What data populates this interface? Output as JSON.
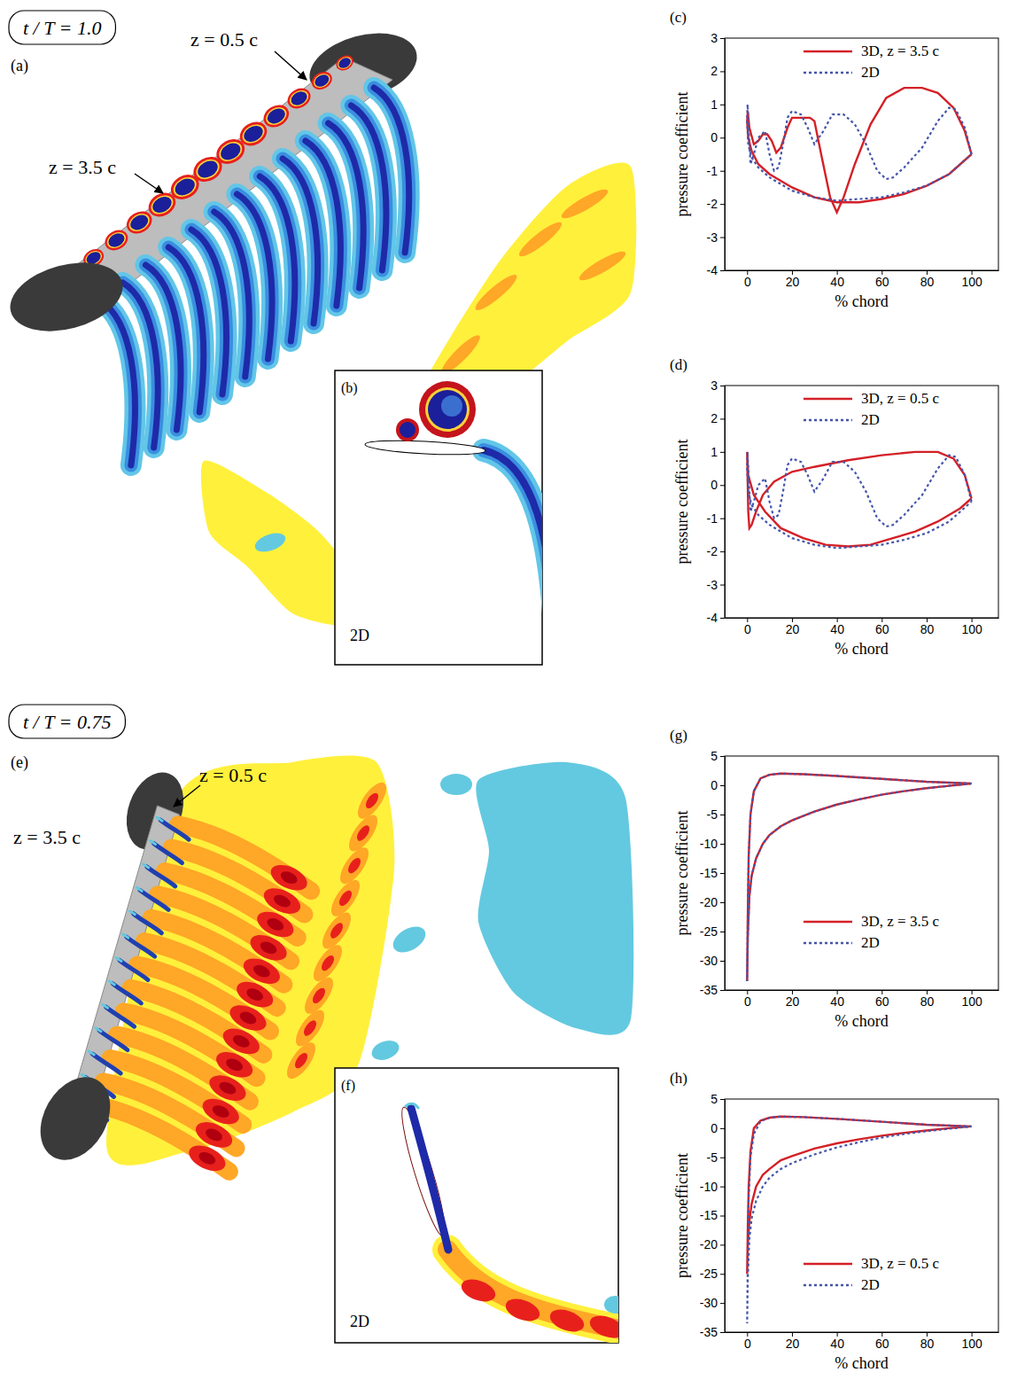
{
  "chart_data": [
    {
      "type": "line",
      "panel": "(c)",
      "x_label": "% chord",
      "y_label": "pressure coefficient",
      "xlim": [
        -10,
        112
      ],
      "xticks": [
        0,
        20,
        40,
        60,
        80,
        100
      ],
      "ylim": [
        -4,
        3
      ],
      "yticks": [
        -4,
        -3,
        -2,
        -1,
        0,
        1,
        2,
        3
      ],
      "legend": "upper right",
      "series": [
        {
          "name": "3D, z = 3.5 c",
          "color": "#d42027",
          "line_style": "solid",
          "x": [
            100,
            97,
            92,
            85,
            78,
            70,
            62,
            55,
            48,
            43,
            40,
            37,
            33,
            30,
            28,
            24,
            20,
            18,
            15,
            13,
            11,
            9,
            7,
            5,
            3,
            1,
            0.3,
            0,
            0.5,
            2,
            5,
            10,
            20,
            30,
            40,
            50,
            60,
            70,
            80,
            90,
            95,
            100
          ],
          "values": [
            -0.5,
            0.2,
            0.9,
            1.35,
            1.5,
            1.5,
            1.2,
            0.4,
            -0.8,
            -1.8,
            -2.25,
            -1.8,
            -0.5,
            0.5,
            0.6,
            0.6,
            0.6,
            0.3,
            -0.3,
            -0.45,
            -0.1,
            0.1,
            0.1,
            -0.1,
            -0.2,
            0.3,
            0.8,
            0.5,
            0.0,
            -0.4,
            -0.8,
            -1.1,
            -1.5,
            -1.8,
            -1.95,
            -1.95,
            -1.85,
            -1.7,
            -1.45,
            -1.1,
            -0.8,
            -0.5
          ]
        },
        {
          "name": "2D",
          "color": "#4455aa",
          "line_style": "dotted",
          "x": [
            100,
            97,
            93,
            90,
            85,
            78,
            70,
            65,
            62,
            58,
            53,
            48,
            43,
            38,
            34,
            30,
            27,
            24,
            20,
            18,
            16,
            14,
            12,
            10,
            8,
            5,
            3,
            1.5,
            0.5,
            0.2,
            0,
            0.5,
            2,
            5,
            10,
            20,
            30,
            40,
            50,
            60,
            70,
            80,
            90,
            95,
            100
          ],
          "values": [
            -0.5,
            0.3,
            0.85,
            0.9,
            0.5,
            -0.3,
            -0.9,
            -1.2,
            -1.25,
            -1.0,
            -0.2,
            0.4,
            0.7,
            0.7,
            0.2,
            -0.2,
            0.3,
            0.7,
            0.8,
            0.6,
            -0.2,
            -0.9,
            -1.0,
            -0.5,
            0.2,
            0.0,
            -0.5,
            -0.8,
            0.5,
            1.0,
            0.5,
            -0.2,
            -0.6,
            -0.9,
            -1.2,
            -1.6,
            -1.8,
            -1.9,
            -1.85,
            -1.8,
            -1.65,
            -1.45,
            -1.1,
            -0.8,
            -0.5
          ]
        }
      ]
    },
    {
      "type": "line",
      "panel": "(d)",
      "x_label": "% chord",
      "y_label": "pressure coefficient",
      "xlim": [
        -10,
        112
      ],
      "xticks": [
        0,
        20,
        40,
        60,
        80,
        100
      ],
      "ylim": [
        -4,
        3
      ],
      "yticks": [
        -4,
        -3,
        -2,
        -1,
        0,
        1,
        2,
        3
      ],
      "legend": "upper right",
      "series": [
        {
          "name": "3D, z = 0.5 c",
          "color": "#d42027",
          "line_style": "solid",
          "x": [
            100,
            97,
            92,
            85,
            75,
            60,
            45,
            30,
            20,
            12,
            7,
            4,
            2,
            1,
            0.5,
            0,
            0.5,
            3,
            8,
            15,
            25,
            35,
            45,
            55,
            65,
            75,
            85,
            95,
            100
          ],
          "values": [
            -0.4,
            0.3,
            0.8,
            1.0,
            1.0,
            0.9,
            0.75,
            0.55,
            0.4,
            0.1,
            -0.3,
            -0.8,
            -1.2,
            -1.3,
            -0.8,
            1.0,
            0.3,
            -0.3,
            -0.8,
            -1.3,
            -1.6,
            -1.8,
            -1.85,
            -1.8,
            -1.6,
            -1.4,
            -1.1,
            -0.7,
            -0.4
          ]
        },
        {
          "name": "2D",
          "color": "#4455aa",
          "line_style": "dotted",
          "x": [
            100,
            97,
            93,
            90,
            85,
            78,
            70,
            65,
            62,
            58,
            53,
            48,
            43,
            38,
            34,
            30,
            27,
            24,
            20,
            18,
            16,
            14,
            12,
            10,
            8,
            5,
            3,
            1.5,
            0.5,
            0.2,
            0,
            0.5,
            2,
            5,
            10,
            20,
            30,
            40,
            50,
            60,
            70,
            80,
            90,
            95,
            100
          ],
          "values": [
            -0.5,
            0.3,
            0.85,
            0.9,
            0.5,
            -0.3,
            -0.9,
            -1.2,
            -1.25,
            -1.0,
            -0.2,
            0.4,
            0.7,
            0.7,
            0.2,
            -0.2,
            0.3,
            0.7,
            0.8,
            0.6,
            -0.2,
            -0.9,
            -1.0,
            -0.5,
            0.2,
            0.0,
            -0.5,
            -0.8,
            0.5,
            1.0,
            0.5,
            -0.2,
            -0.6,
            -0.9,
            -1.2,
            -1.6,
            -1.8,
            -1.9,
            -1.85,
            -1.8,
            -1.65,
            -1.45,
            -1.1,
            -0.8,
            -0.5
          ]
        }
      ]
    },
    {
      "type": "line",
      "panel": "(g)",
      "x_label": "% chord",
      "y_label": "pressure coefficient",
      "xlim": [
        -10,
        112
      ],
      "xticks": [
        0,
        20,
        40,
        60,
        80,
        100
      ],
      "ylim": [
        -35,
        5
      ],
      "yticks": [
        -35,
        -30,
        -25,
        -20,
        -15,
        -10,
        -5,
        0,
        5
      ],
      "legend": "lower right",
      "series": [
        {
          "name": "3D, z = 3.5 c",
          "color": "#d42027",
          "line_style": "solid",
          "x": [
            100,
            80,
            60,
            40,
            25,
            15,
            10,
            6,
            3,
            1.5,
            0.7,
            0.3,
            0,
            0.3,
            1,
            2,
            4,
            7,
            10,
            15,
            20,
            30,
            40,
            50,
            60,
            70,
            80,
            90,
            100
          ],
          "values": [
            0.3,
            0.6,
            1.1,
            1.6,
            1.9,
            2.0,
            1.8,
            1.2,
            -1,
            -5,
            -12,
            -22,
            -33.5,
            -26,
            -19,
            -15.5,
            -12.5,
            -10,
            -8.5,
            -7,
            -6,
            -4.5,
            -3.3,
            -2.4,
            -1.6,
            -1,
            -0.5,
            -0.1,
            0.3
          ]
        },
        {
          "name": "2D",
          "color": "#4455aa",
          "line_style": "dotted",
          "x": [
            100,
            80,
            60,
            40,
            25,
            15,
            10,
            6,
            3,
            1.5,
            0.7,
            0.3,
            0,
            0.3,
            1,
            2,
            4,
            7,
            10,
            15,
            20,
            30,
            40,
            50,
            60,
            70,
            80,
            90,
            100
          ],
          "values": [
            0.3,
            0.6,
            1.1,
            1.6,
            1.9,
            2.0,
            1.8,
            1.2,
            -1,
            -5,
            -12,
            -22,
            -33.5,
            -26,
            -19,
            -15.5,
            -12.5,
            -10,
            -8.5,
            -7,
            -6,
            -4.5,
            -3.3,
            -2.4,
            -1.6,
            -1,
            -0.5,
            -0.1,
            0.3
          ]
        }
      ]
    },
    {
      "type": "line",
      "panel": "(h)",
      "x_label": "% chord",
      "y_label": "pressure coefficient",
      "xlim": [
        -10,
        112
      ],
      "xticks": [
        0,
        20,
        40,
        60,
        80,
        100
      ],
      "ylim": [
        -35,
        5
      ],
      "yticks": [
        -35,
        -30,
        -25,
        -20,
        -15,
        -10,
        -5,
        0,
        5
      ],
      "legend": "lower right",
      "series": [
        {
          "name": "3D, z = 0.5 c",
          "color": "#d42027",
          "line_style": "solid",
          "x": [
            100,
            80,
            60,
            40,
            25,
            15,
            10,
            6,
            3,
            1.5,
            0.7,
            0.3,
            0,
            0.3,
            1,
            2,
            4,
            7,
            10,
            15,
            20,
            30,
            40,
            50,
            60,
            70,
            80,
            90,
            100
          ],
          "values": [
            0.3,
            0.6,
            1.1,
            1.6,
            1.9,
            2.0,
            1.8,
            1.3,
            0,
            -4,
            -10,
            -17,
            -25,
            -20,
            -16,
            -13,
            -10,
            -8,
            -7,
            -5.5,
            -4.8,
            -3.5,
            -2.6,
            -1.9,
            -1.3,
            -0.8,
            -0.4,
            0,
            0.3
          ]
        },
        {
          "name": "2D",
          "color": "#4455aa",
          "line_style": "dotted",
          "x": [
            100,
            80,
            60,
            40,
            25,
            15,
            10,
            6,
            3,
            1.5,
            0.7,
            0.3,
            0,
            0.3,
            1,
            2,
            4,
            7,
            10,
            15,
            20,
            30,
            40,
            50,
            60,
            70,
            80,
            90,
            100
          ],
          "values": [
            0.3,
            0.6,
            1.1,
            1.6,
            1.9,
            2.0,
            1.8,
            1.2,
            -1,
            -5,
            -12,
            -22,
            -33.5,
            -26,
            -19,
            -15.5,
            -12.5,
            -10,
            -8.5,
            -7,
            -6,
            -4.5,
            -3.3,
            -2.4,
            -1.6,
            -1,
            -0.5,
            -0.1,
            0.3
          ]
        }
      ]
    }
  ],
  "illustrations": [
    {
      "time_label": "t / T = 1.0",
      "panel": "(a)",
      "span_labels": [
        "z = 0.5 c",
        "z = 3.5 c"
      ],
      "inset": {
        "panel": "(b)",
        "label": "2D"
      }
    },
    {
      "time_label": "t / T = 0.75",
      "panel": "(e)",
      "span_labels": [
        "z = 0.5 c",
        "z = 3.5 c"
      ],
      "inset": {
        "panel": "(f)",
        "label": "2D"
      }
    }
  ]
}
